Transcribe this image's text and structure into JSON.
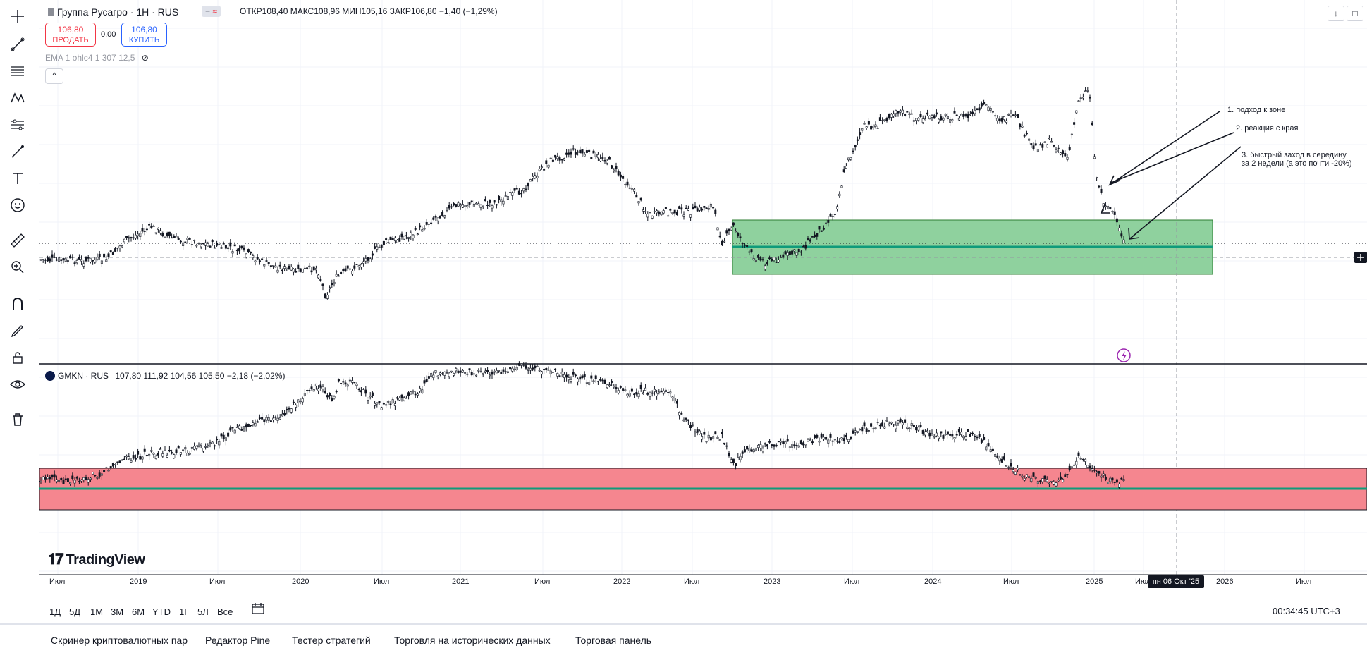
{
  "header": {
    "symbol": "Группа Русагро · 1Н · RUS",
    "ohlc": "ОТКР108,40  МАКС108,96  МИН105,16  ЗАКР106,80  −1,40 (−1,29%)",
    "sell_price": "106,80",
    "sell_label": "ПРОДАТЬ",
    "buy_price": "106,80",
    "buy_label": "КУПИТЬ",
    "spread": "0,00",
    "indicator": "EMA 1 ohlc4 1 307 12,5",
    "collapse": "^"
  },
  "pane2": {
    "symbol": "GMKN · RUS",
    "ohlc": "107,80  111,92  104,56  105,50  −2,18 (−2,02%)"
  },
  "annotations": {
    "a1": "1. подход к зоне",
    "a2": "2. реакция с края",
    "a3_line1": "3. быстрый заход в середину",
    "a3_line2": "за 2 недели (а это почти -20%)"
  },
  "x_axis": [
    "Июл",
    "2019",
    "Июл",
    "2020",
    "Июл",
    "2021",
    "Июл",
    "2022",
    "Июл",
    "2023",
    "Июл",
    "2024",
    "Июл",
    "2025",
    "Июл",
    "2026",
    "Июл"
  ],
  "date_badge": "пн 06 Окт '25",
  "ranges": [
    "1Д",
    "5Д",
    "1M",
    "3M",
    "6M",
    "YTD",
    "1Г",
    "5Л",
    "Все"
  ],
  "clock": "00:34:45 UTC+3",
  "bottom_tabs": [
    "Скринер криптовалютных пар",
    "Редактор Pine",
    "Тестер стратегий",
    "Торговля на исторических данных",
    "Торговая панель"
  ],
  "brand": "TradingView",
  "colors": {
    "green_zone": "#8fd19e",
    "red_zone": "#f5868f",
    "teal_line": "#0f9b7a",
    "accent_blue": "#2962ff",
    "sell_red": "#f23645"
  },
  "icons": [
    "crosshair-icon",
    "trend-line-icon",
    "fib-icon",
    "pattern-icon",
    "forecast-icon",
    "brush-icon",
    "text-icon",
    "emoji-icon",
    "ruler-icon",
    "zoom-icon",
    "magnet-icon",
    "lock-draw-icon",
    "lock-icon",
    "eye-icon",
    "trash-icon"
  ]
}
